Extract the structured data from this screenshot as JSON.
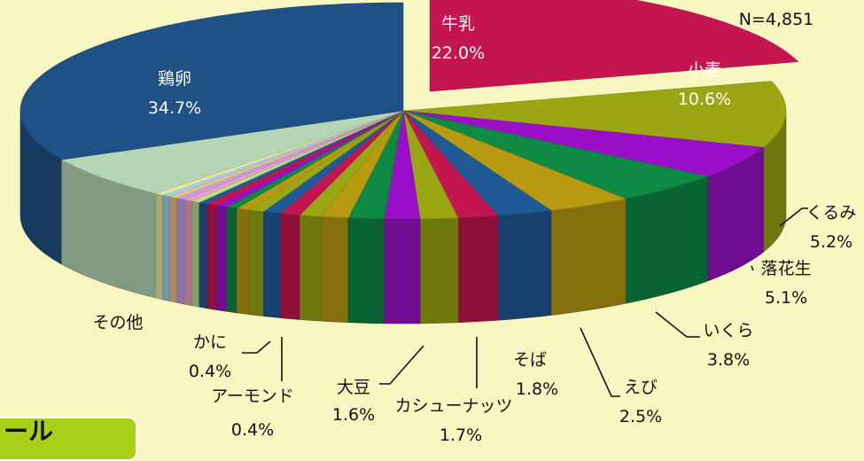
{
  "chart_data": {
    "type": "pie",
    "style": "3d-exploded",
    "sample_size": "N=4,851",
    "slices": [
      {
        "label": "牛乳",
        "value": 22.0,
        "value_label": "22.0%",
        "color": "#c41551",
        "exploded": true
      },
      {
        "label": "小麦",
        "value": 10.6,
        "value_label": "10.6%",
        "color": "#9aa613"
      },
      {
        "label": "",
        "value": 5.2,
        "color": "#9a10c8"
      },
      {
        "label": "",
        "value": 5.1,
        "color": "#0e8a45"
      },
      {
        "label": "",
        "value": 3.8,
        "color": "#b89a10"
      },
      {
        "label": "",
        "value": 2.5,
        "color": "#205a96"
      },
      {
        "label": "",
        "value": 1.8,
        "color": "#c41551"
      },
      {
        "label": "",
        "value": 1.7,
        "color": "#9aa613"
      },
      {
        "label": "",
        "value": 1.6,
        "color": "#9a10c8"
      },
      {
        "label": "",
        "value": 1.6,
        "color": "#0e8a45"
      },
      {
        "label": "",
        "value": 1.2,
        "color": "#b89a10"
      },
      {
        "label": "",
        "value": 1.0,
        "color": "#9aa613"
      },
      {
        "label": "",
        "value": 0.9,
        "color": "#c41551"
      },
      {
        "label": "",
        "value": 0.8,
        "color": "#205a96"
      },
      {
        "label": "",
        "value": 0.7,
        "color": "#9aa613"
      },
      {
        "label": "",
        "value": 0.6,
        "color": "#b89a10"
      },
      {
        "label": "",
        "value": 0.5,
        "color": "#0e8a45"
      },
      {
        "label": "",
        "value": 0.5,
        "color": "#9a10c8"
      },
      {
        "label": "",
        "value": 0.5,
        "color": "#c41551"
      },
      {
        "label": "",
        "value": 0.4,
        "color": "#205a96"
      },
      {
        "label": "",
        "value": 0.4,
        "color": "#b8e08a"
      },
      {
        "label": "",
        "value": 0.4,
        "color": "#f0a0c0"
      },
      {
        "label": "",
        "value": 0.4,
        "color": "#c0a0e8"
      },
      {
        "label": "",
        "value": 0.4,
        "color": "#f0c080"
      },
      {
        "label": "",
        "value": 0.4,
        "color": "#a0d0f0"
      },
      {
        "label": "",
        "value": 0.4,
        "color": "#e8e8a0"
      },
      {
        "label": "その他",
        "value": 6.8,
        "value_label": "",
        "color": "#b4d6b4"
      },
      {
        "label": "鶏卵",
        "value": 34.7,
        "value_label": "34.7%",
        "color": "#1f5186"
      }
    ],
    "callouts": [
      {
        "label": "くるみ",
        "value_label": "5.2%"
      },
      {
        "label": "落花生",
        "value_label": "5.1%"
      },
      {
        "label": "いくら",
        "value_label": "3.8%"
      },
      {
        "label": "えび",
        "value_label": "2.5%"
      },
      {
        "label": "そば",
        "value_label": "1.8%"
      },
      {
        "label": "カシューナッツ",
        "value_label": "1.7%"
      },
      {
        "label": "大豆",
        "value_label": "1.6%"
      },
      {
        "label": "アーモンド",
        "value_label": "0.4%"
      },
      {
        "label": "かに",
        "value_label": "0.4%"
      }
    ]
  },
  "footer": {
    "tag_label": "ール"
  }
}
